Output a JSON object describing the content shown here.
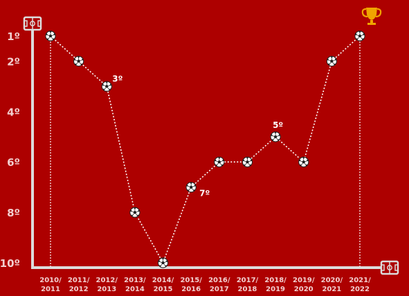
{
  "chart_data": {
    "type": "line",
    "title": "",
    "xlabel": "",
    "ylabel": "",
    "y_axis": {
      "reversed": true,
      "ylim": [
        1,
        10
      ],
      "tick_labels": [
        "1º",
        "2º",
        "4º",
        "6º",
        "8º",
        "10º"
      ],
      "tick_values": [
        1,
        2,
        4,
        6,
        8,
        10
      ]
    },
    "x_axis": {
      "tick_labels": [
        [
          "2010/",
          "2011"
        ],
        [
          "2011/",
          "2012"
        ],
        [
          "2012/",
          "2013"
        ],
        [
          "2013/",
          "2014"
        ],
        [
          "2014/",
          "2015"
        ],
        [
          "2015/",
          "2016"
        ],
        [
          "2016/",
          "2017"
        ],
        [
          "2017/",
          "2018"
        ],
        [
          "2018/",
          "2019"
        ],
        [
          "2019/",
          "2020"
        ],
        [
          "2020/",
          "2021"
        ],
        [
          "2021/",
          "2022"
        ]
      ]
    },
    "series": [
      {
        "values": [
          1,
          2,
          3,
          8,
          10,
          7,
          6,
          6,
          5,
          6,
          2,
          1
        ]
      }
    ],
    "data_labels": [
      {
        "index": 2,
        "text": "3º"
      },
      {
        "index": 5,
        "text": "7º"
      },
      {
        "index": 8,
        "text": "5º"
      }
    ],
    "markers": "soccer-ball-icon",
    "champion_marker": {
      "index": 11,
      "icon": "trophy-icon"
    },
    "grid": false,
    "legend": "none",
    "colors": {
      "background": "#ad0000",
      "axis": "#dcdcdc",
      "line": "#ffffff",
      "tick_text": "#f2cfcf",
      "trophy": "#f0a500"
    }
  }
}
